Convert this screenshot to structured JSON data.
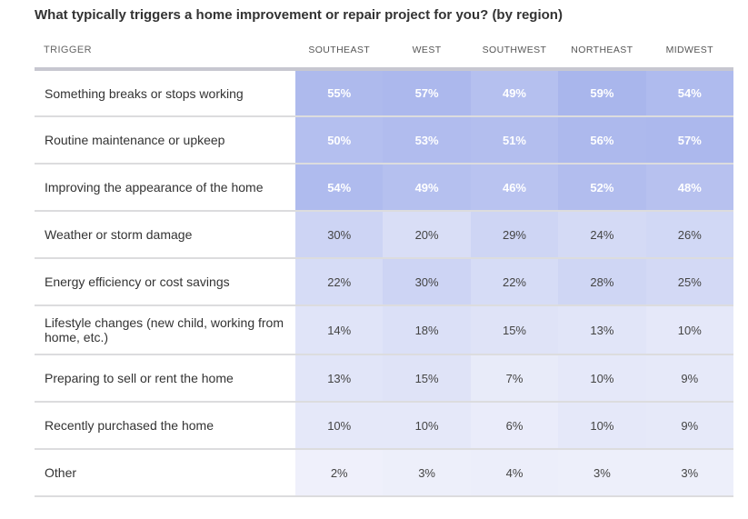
{
  "title": "What typically triggers a home improvement or repair project for you? (by region)",
  "chart_data": {
    "type": "heatmap",
    "title": "What typically triggers a home improvement or repair project for you? (by region)",
    "row_header": "TRIGGER",
    "columns": [
      "SOUTHEAST",
      "WEST",
      "SOUTHWEST",
      "NORTHEAST",
      "MIDWEST"
    ],
    "unit": "%",
    "rows": [
      {
        "label": "Something breaks or stops working",
        "values": [
          55,
          57,
          49,
          59,
          54
        ]
      },
      {
        "label": "Routine maintenance or upkeep",
        "values": [
          50,
          53,
          51,
          56,
          57
        ]
      },
      {
        "label": "Improving the appearance of the home",
        "values": [
          54,
          49,
          46,
          52,
          48
        ]
      },
      {
        "label": "Weather or storm damage",
        "values": [
          30,
          20,
          29,
          24,
          26
        ]
      },
      {
        "label": "Energy efficiency or cost savings",
        "values": [
          22,
          30,
          22,
          28,
          25
        ]
      },
      {
        "label": "Lifestyle changes (new child, working from home, etc.)",
        "values": [
          14,
          18,
          15,
          13,
          10
        ]
      },
      {
        "label": "Preparing to sell or rent the home",
        "values": [
          13,
          15,
          7,
          10,
          9
        ]
      },
      {
        "label": "Recently purchased the home",
        "values": [
          10,
          10,
          6,
          10,
          9
        ]
      },
      {
        "label": "Other",
        "values": [
          2,
          3,
          4,
          3,
          3
        ]
      }
    ],
    "color_scale": {
      "low": "#f1f2fb",
      "high": "#a8b5ec"
    },
    "emphasis_threshold": 40
  }
}
